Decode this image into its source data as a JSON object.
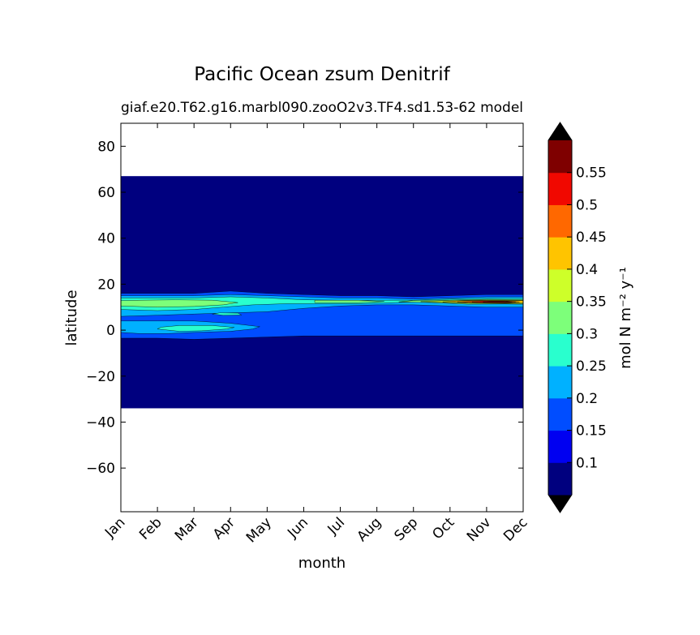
{
  "chart_data": {
    "type": "heatmap",
    "title": "Pacific Ocean zsum Denitrif",
    "subtitle_left": "giaf.e20.T62.g16.marbl090.zooO2v3.TF4.sd1.53-62",
    "subtitle_right": "model",
    "xlabel": "month",
    "ylabel": "latitude",
    "colorbar_label": "mol N m⁻² y⁻¹",
    "x_ticks": [
      "Jan",
      "Feb",
      "Mar",
      "Apr",
      "May",
      "Jun",
      "Jul",
      "Aug",
      "Sep",
      "Oct",
      "Nov",
      "Dec"
    ],
    "y_ticks": [
      80,
      60,
      40,
      20,
      0,
      -20,
      -40,
      -60
    ],
    "ylim": [
      -79,
      90
    ],
    "data_lat_range": [
      -34,
      67
    ],
    "colorbar_levels": [
      0.05,
      0.1,
      0.15,
      0.2,
      0.25,
      0.3,
      0.35,
      0.4,
      0.45,
      0.5,
      0.55,
      0.6
    ],
    "colorbar_tick_labels": [
      "0.1",
      "0.15",
      "0.2",
      "0.25",
      "0.3",
      "0.35",
      "0.4",
      "0.45",
      "0.5",
      "0.55"
    ],
    "colorbar_extend": "both",
    "colormap": [
      "#00007f",
      "#0000f1",
      "#004dff",
      "#00b1ff",
      "#29ffce",
      "#7dff7a",
      "#ceff29",
      "#ffc400",
      "#ff6800",
      "#f10800",
      "#7f0000"
    ],
    "extend_colors": {
      "below": "#000000",
      "above": "#000000"
    },
    "background_color": "#00007f",
    "bands": [
      {
        "level": 2,
        "points": [
          [
            1,
            -3.5
          ],
          [
            2,
            -3.5
          ],
          [
            3,
            -4
          ],
          [
            4,
            -3.5
          ],
          [
            5,
            -3
          ],
          [
            6,
            -2.5
          ],
          [
            7,
            -2.5
          ],
          [
            8,
            -2.5
          ],
          [
            9,
            -2.5
          ],
          [
            10,
            -2.5
          ],
          [
            11,
            -2.5
          ],
          [
            12,
            -2.5
          ],
          [
            12,
            15.5
          ],
          [
            11,
            15.5
          ],
          [
            10,
            15
          ],
          [
            9,
            14.5
          ],
          [
            8,
            15
          ],
          [
            7,
            15
          ],
          [
            6,
            15.5
          ],
          [
            5,
            16
          ],
          [
            4,
            17
          ],
          [
            3,
            16
          ],
          [
            2,
            16
          ],
          [
            1,
            16
          ]
        ]
      },
      {
        "level": 3,
        "points": [
          [
            1,
            6
          ],
          [
            2,
            6.5
          ],
          [
            3,
            7
          ],
          [
            4,
            7.5
          ],
          [
            5,
            8
          ],
          [
            6,
            9.5
          ],
          [
            7,
            10.5
          ],
          [
            8,
            11
          ],
          [
            9,
            11
          ],
          [
            10,
            10.5
          ],
          [
            11,
            10
          ],
          [
            12,
            10
          ],
          [
            12,
            14.5
          ],
          [
            11,
            14.5
          ],
          [
            10,
            14
          ],
          [
            9,
            13.5
          ],
          [
            8,
            14
          ],
          [
            7,
            14
          ],
          [
            6,
            14.5
          ],
          [
            5,
            15
          ],
          [
            4,
            15.5
          ],
          [
            3,
            15
          ],
          [
            2,
            15
          ],
          [
            1,
            15
          ]
        ]
      },
      {
        "level": 3,
        "points": [
          [
            1,
            -1
          ],
          [
            1.5,
            -1.5
          ],
          [
            2.3,
            -1.5
          ],
          [
            3,
            -1
          ],
          [
            4,
            -0.5
          ],
          [
            4.6,
            0.5
          ],
          [
            4.8,
            1.5
          ],
          [
            4,
            3
          ],
          [
            3,
            4
          ],
          [
            2,
            4
          ],
          [
            1,
            4
          ]
        ]
      },
      {
        "level": 4,
        "points": [
          [
            1,
            9
          ],
          [
            2,
            8.5
          ],
          [
            3,
            9
          ],
          [
            3.8,
            10
          ],
          [
            4.6,
            11
          ],
          [
            5.5,
            11.5
          ],
          [
            6.5,
            11.5
          ],
          [
            7.5,
            11.5
          ],
          [
            8.5,
            12
          ],
          [
            9.5,
            12.5
          ],
          [
            10.5,
            12
          ],
          [
            11.5,
            11.8
          ],
          [
            12,
            11.8
          ],
          [
            12,
            13.8
          ],
          [
            11,
            13.8
          ],
          [
            10,
            13.5
          ],
          [
            9,
            13
          ],
          [
            8,
            13
          ],
          [
            7,
            13
          ],
          [
            6,
            13.2
          ],
          [
            5,
            14
          ],
          [
            4,
            14.5
          ],
          [
            3,
            14
          ],
          [
            2,
            14
          ],
          [
            1,
            14
          ]
        ]
      },
      {
        "level": 4,
        "points": [
          [
            2,
            0.5
          ],
          [
            2.6,
            -0.5
          ],
          [
            3.2,
            -0.3
          ],
          [
            3.9,
            0.5
          ],
          [
            4.1,
            1.2
          ],
          [
            3.5,
            2
          ],
          [
            2.6,
            2
          ],
          [
            2.1,
            1.3
          ]
        ]
      },
      {
        "level": 4,
        "points": [
          [
            3.5,
            7
          ],
          [
            3.8,
            6.5
          ],
          [
            4.3,
            6.6
          ],
          [
            4.2,
            7.4
          ],
          [
            3.7,
            7.5
          ]
        ]
      },
      {
        "level": 5,
        "points": [
          [
            1,
            10.5
          ],
          [
            2,
            10
          ],
          [
            3,
            10.3
          ],
          [
            3.8,
            11
          ],
          [
            4.2,
            12
          ],
          [
            3.5,
            13
          ],
          [
            2.5,
            13.2
          ],
          [
            1.5,
            13
          ],
          [
            1,
            12.8
          ]
        ]
      },
      {
        "level": 5,
        "points": [
          [
            6.3,
            12
          ],
          [
            7.5,
            12
          ],
          [
            8.2,
            12.5
          ],
          [
            7.5,
            13
          ],
          [
            6.3,
            13
          ]
        ]
      },
      {
        "level": 5,
        "points": [
          [
            8.6,
            12.3
          ],
          [
            9.5,
            12
          ],
          [
            10.5,
            11.3
          ],
          [
            11.5,
            11.4
          ],
          [
            12,
            11.3
          ],
          [
            12,
            13.3
          ],
          [
            11,
            13.4
          ],
          [
            10,
            13.1
          ],
          [
            9,
            12.9
          ]
        ]
      },
      {
        "level": 6,
        "points": [
          [
            9.2,
            12.4
          ],
          [
            10.5,
            11.7
          ],
          [
            11.5,
            11.6
          ],
          [
            12,
            11.6
          ],
          [
            12,
            13
          ],
          [
            11,
            13.1
          ],
          [
            10,
            12.9
          ]
        ]
      },
      {
        "level": 7,
        "points": [
          [
            9.8,
            12.3
          ],
          [
            10.5,
            11.9
          ],
          [
            11.5,
            11.8
          ],
          [
            12,
            11.9
          ],
          [
            12,
            12.8
          ],
          [
            11,
            12.9
          ],
          [
            10.3,
            12.8
          ]
        ]
      },
      {
        "level": 8,
        "points": [
          [
            10.2,
            12.3
          ],
          [
            10.8,
            11.9
          ],
          [
            11.6,
            11.9
          ],
          [
            11.9,
            12.3
          ],
          [
            11.5,
            12.7
          ],
          [
            10.8,
            12.8
          ]
        ]
      },
      {
        "level": 9,
        "points": [
          [
            10.6,
            12.3
          ],
          [
            11,
            12
          ],
          [
            11.6,
            12
          ],
          [
            11.8,
            12.3
          ],
          [
            11.4,
            12.6
          ],
          [
            10.9,
            12.6
          ]
        ]
      },
      {
        "level": 10,
        "points": [
          [
            10.9,
            12.3
          ],
          [
            11.2,
            12.1
          ],
          [
            11.6,
            12.1
          ],
          [
            11.7,
            12.3
          ],
          [
            11.4,
            12.5
          ],
          [
            11.1,
            12.5
          ]
        ]
      }
    ]
  }
}
